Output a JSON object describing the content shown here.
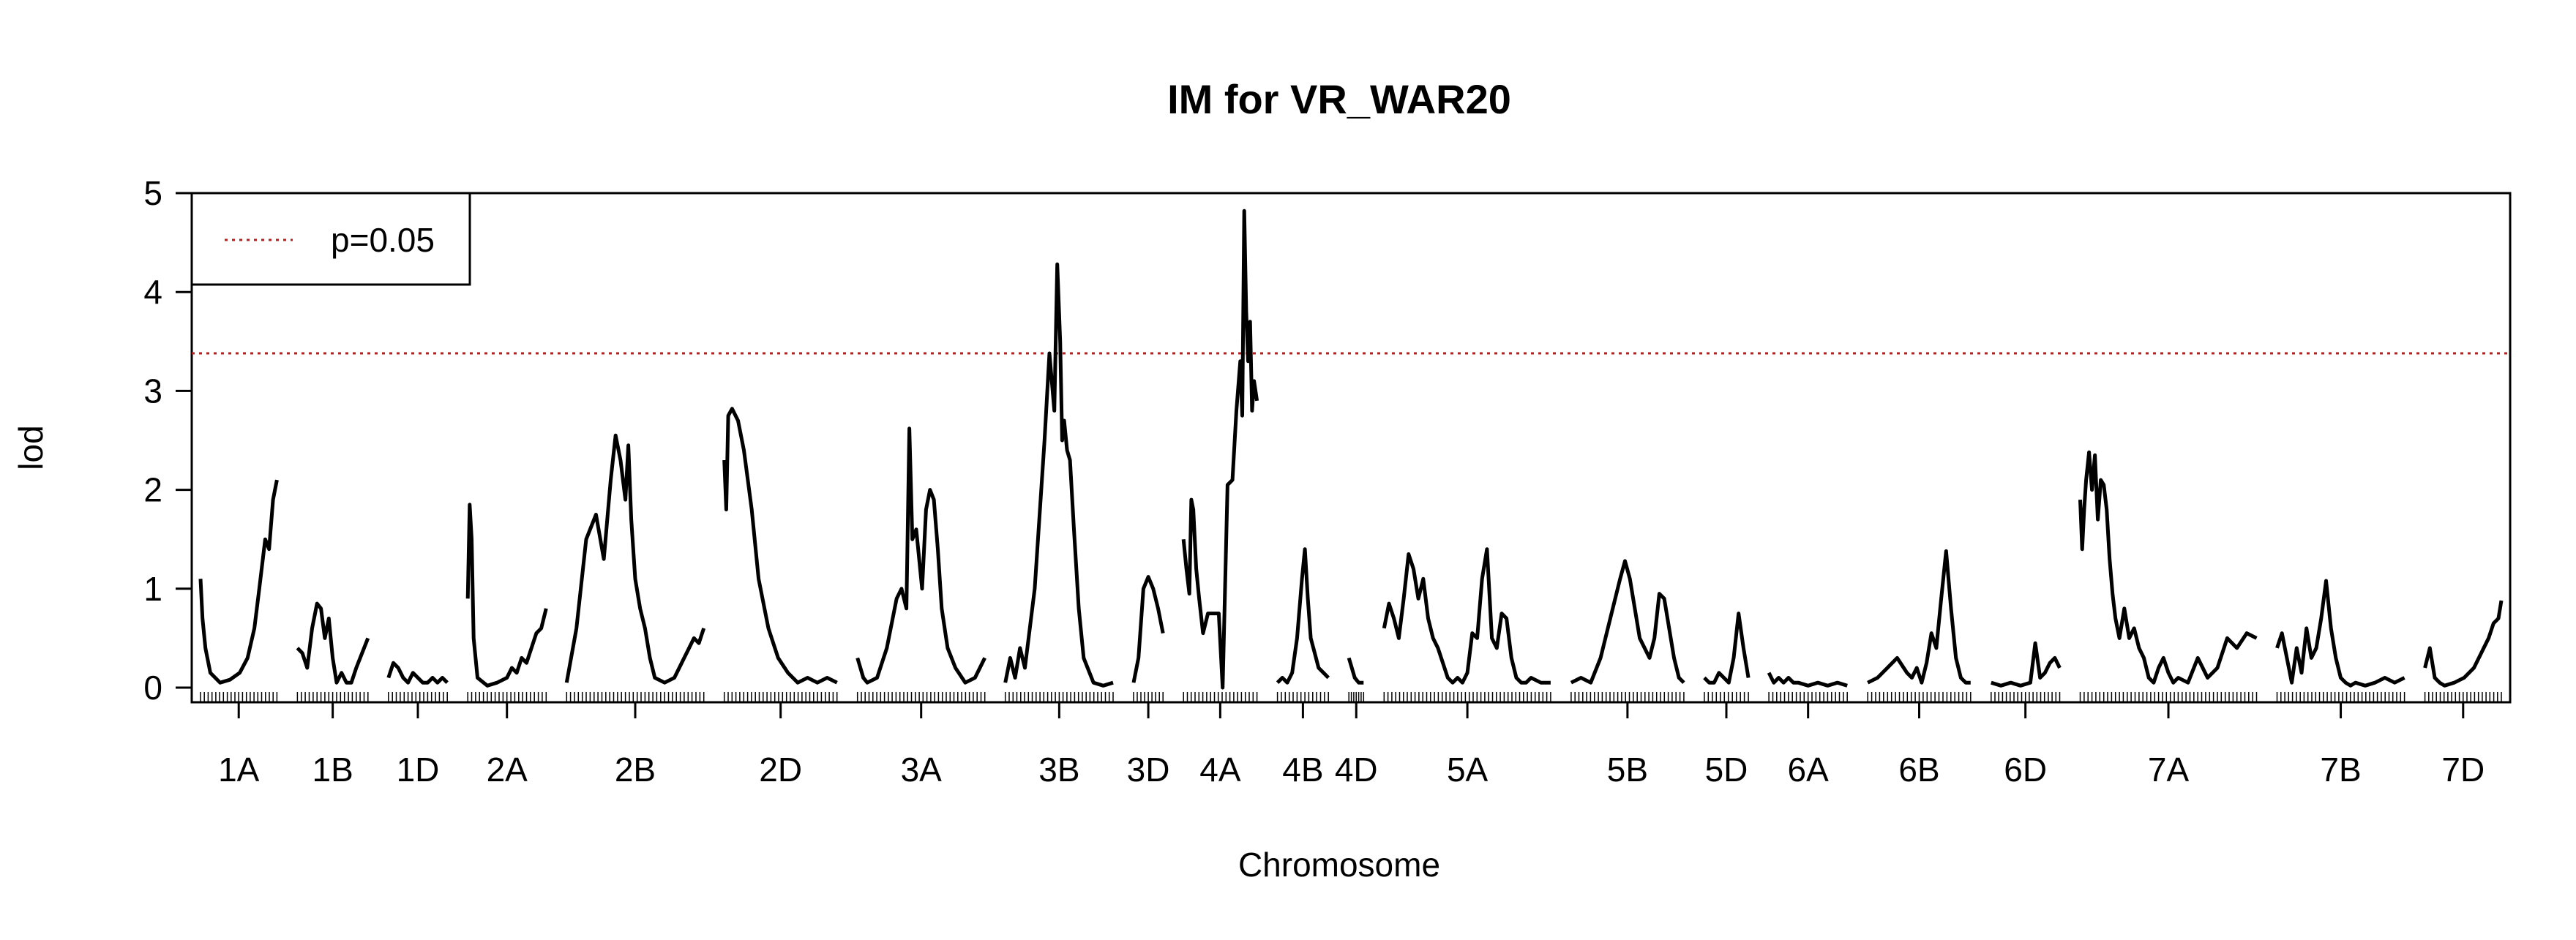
{
  "chart_data": {
    "type": "line",
    "title": "IM for VR_WAR20",
    "xlabel": "Chromosome",
    "ylabel": "lod",
    "ylim": [
      0,
      5
    ],
    "y_ticks": [
      0,
      1,
      2,
      3,
      4,
      5
    ],
    "grid": false,
    "legend": {
      "placement": "top-left",
      "entries": [
        {
          "label": "p=0.05",
          "style": "dotted",
          "color": "#b22222"
        }
      ]
    },
    "threshold": {
      "label": "p=0.05",
      "y": 3.38,
      "color": "#b22222"
    },
    "line_color": "#000000",
    "chromosomes": [
      {
        "name": "1A",
        "x": [
          0,
          2,
          5,
          10,
          20,
          30,
          40,
          48,
          55,
          60,
          66,
          70,
          74,
          78
        ],
        "y": [
          1.1,
          0.7,
          0.4,
          0.15,
          0.05,
          0.08,
          0.15,
          0.3,
          0.6,
          1.0,
          1.5,
          1.4,
          1.9,
          2.1
        ]
      },
      {
        "name": "1B",
        "x": [
          0,
          5,
          10,
          15,
          20,
          24,
          28,
          32,
          36,
          40,
          45,
          50,
          55,
          60,
          66,
          72
        ],
        "y": [
          0.4,
          0.35,
          0.2,
          0.6,
          0.85,
          0.8,
          0.5,
          0.7,
          0.3,
          0.05,
          0.15,
          0.05,
          0.05,
          0.2,
          0.35,
          0.5
        ]
      },
      {
        "name": "1D",
        "x": [
          0,
          5,
          10,
          15,
          20,
          25,
          30,
          35,
          40,
          45,
          50,
          55,
          60
        ],
        "y": [
          0.1,
          0.25,
          0.2,
          0.1,
          0.05,
          0.15,
          0.1,
          0.05,
          0.05,
          0.1,
          0.05,
          0.1,
          0.05
        ]
      },
      {
        "name": "2A",
        "x": [
          0,
          2,
          4,
          6,
          10,
          20,
          30,
          40,
          45,
          50,
          55,
          60,
          65,
          70,
          75,
          80
        ],
        "y": [
          0.9,
          1.85,
          1.5,
          0.5,
          0.1,
          0.02,
          0.05,
          0.1,
          0.2,
          0.15,
          0.3,
          0.25,
          0.4,
          0.55,
          0.6,
          0.8
        ]
      },
      {
        "name": "2B",
        "x": [
          0,
          10,
          20,
          30,
          38,
          45,
          50,
          55,
          60,
          63,
          66,
          70,
          75,
          80,
          85,
          90,
          100,
          110,
          120,
          130,
          135,
          140
        ],
        "y": [
          0.05,
          0.6,
          1.5,
          1.75,
          1.3,
          2.1,
          2.55,
          2.3,
          1.9,
          2.45,
          1.7,
          1.1,
          0.8,
          0.6,
          0.3,
          0.1,
          0.05,
          0.1,
          0.3,
          0.5,
          0.45,
          0.6
        ]
      },
      {
        "name": "2D",
        "x": [
          0,
          2,
          4,
          8,
          14,
          20,
          28,
          35,
          45,
          55,
          65,
          75,
          85,
          95,
          105,
          115
        ],
        "y": [
          2.3,
          1.8,
          2.75,
          2.82,
          2.7,
          2.4,
          1.8,
          1.1,
          0.6,
          0.3,
          0.15,
          0.05,
          0.1,
          0.05,
          0.1,
          0.05
        ]
      },
      {
        "name": "3A",
        "x": [
          0,
          3,
          6,
          10,
          20,
          30,
          40,
          45,
          50,
          53,
          56,
          60,
          63,
          66,
          70,
          74,
          78,
          82,
          86,
          92,
          100,
          110,
          120,
          130
        ],
        "y": [
          0.3,
          0.2,
          0.1,
          0.05,
          0.1,
          0.4,
          0.9,
          1.0,
          0.8,
          2.62,
          1.5,
          1.6,
          1.3,
          1.0,
          1.8,
          2.0,
          1.9,
          1.4,
          0.8,
          0.4,
          0.2,
          0.05,
          0.1,
          0.3
        ]
      },
      {
        "name": "3B",
        "x": [
          0,
          5,
          10,
          15,
          20,
          30,
          40,
          45,
          50,
          53,
          56,
          58,
          60,
          63,
          66,
          70,
          75,
          80,
          90,
          100,
          110
        ],
        "y": [
          0.05,
          0.3,
          0.1,
          0.4,
          0.2,
          1.0,
          2.5,
          3.38,
          2.8,
          4.28,
          3.5,
          2.5,
          2.7,
          2.4,
          2.3,
          1.6,
          0.8,
          0.3,
          0.05,
          0.02,
          0.05
        ]
      },
      {
        "name": "3D",
        "x": [
          0,
          5,
          10,
          15,
          20,
          25,
          30
        ],
        "y": [
          0.05,
          0.3,
          1.0,
          1.12,
          1.0,
          0.8,
          0.55
        ]
      },
      {
        "name": "4A",
        "x": [
          0,
          3,
          6,
          8,
          10,
          13,
          16,
          20,
          25,
          30,
          36,
          40,
          45,
          50,
          54,
          58,
          60,
          62,
          64,
          66,
          68,
          70,
          72,
          75
        ],
        "y": [
          1.5,
          1.2,
          0.95,
          1.9,
          1.8,
          1.2,
          0.9,
          0.55,
          0.75,
          0.75,
          0.75,
          0.0,
          2.05,
          2.1,
          2.8,
          3.3,
          2.75,
          4.82,
          3.8,
          3.3,
          3.7,
          2.8,
          3.1,
          2.9
        ]
      },
      {
        "name": "4B",
        "x": [
          0,
          5,
          10,
          15,
          20,
          25,
          28,
          31,
          34,
          38,
          42,
          47,
          52
        ],
        "y": [
          0.05,
          0.1,
          0.05,
          0.15,
          0.5,
          1.1,
          1.4,
          0.9,
          0.5,
          0.35,
          0.2,
          0.15,
          0.1
        ]
      },
      {
        "name": "4D",
        "x": [
          0,
          3,
          6,
          10,
          15
        ],
        "y": [
          0.3,
          0.2,
          0.1,
          0.05,
          0.05
        ]
      },
      {
        "name": "5A",
        "x": [
          0,
          5,
          10,
          15,
          20,
          25,
          30,
          35,
          40,
          45,
          50,
          55,
          60,
          65,
          70,
          75,
          80,
          85,
          90,
          95,
          100,
          105,
          110,
          115,
          120,
          125,
          130,
          135,
          140,
          145,
          150,
          160,
          170
        ],
        "y": [
          0.6,
          0.85,
          0.7,
          0.5,
          0.9,
          1.35,
          1.2,
          0.9,
          1.1,
          0.7,
          0.5,
          0.4,
          0.25,
          0.1,
          0.05,
          0.1,
          0.05,
          0.15,
          0.55,
          0.5,
          1.1,
          1.4,
          0.5,
          0.4,
          0.75,
          0.7,
          0.3,
          0.1,
          0.05,
          0.05,
          0.1,
          0.05,
          0.05
        ]
      },
      {
        "name": "5B",
        "x": [
          0,
          10,
          20,
          30,
          40,
          50,
          55,
          60,
          65,
          70,
          75,
          80,
          85,
          90,
          95,
          100,
          105,
          110,
          115
        ],
        "y": [
          0.05,
          0.1,
          0.05,
          0.3,
          0.7,
          1.1,
          1.28,
          1.1,
          0.8,
          0.5,
          0.4,
          0.3,
          0.5,
          0.95,
          0.9,
          0.6,
          0.3,
          0.1,
          0.05
        ]
      },
      {
        "name": "5D",
        "x": [
          0,
          5,
          10,
          15,
          20,
          25,
          30,
          35,
          40,
          45
        ],
        "y": [
          0.1,
          0.05,
          0.05,
          0.15,
          0.1,
          0.05,
          0.3,
          0.75,
          0.4,
          0.1
        ]
      },
      {
        "name": "6A",
        "x": [
          0,
          5,
          10,
          15,
          20,
          25,
          30,
          40,
          50,
          60,
          70,
          80
        ],
        "y": [
          0.15,
          0.05,
          0.1,
          0.05,
          0.1,
          0.05,
          0.05,
          0.02,
          0.05,
          0.02,
          0.05,
          0.02
        ]
      },
      {
        "name": "6B",
        "x": [
          0,
          10,
          20,
          30,
          40,
          45,
          50,
          55,
          60,
          65,
          70,
          75,
          80,
          85,
          90,
          95,
          100,
          105
        ],
        "y": [
          0.05,
          0.1,
          0.2,
          0.3,
          0.15,
          0.1,
          0.2,
          0.05,
          0.25,
          0.55,
          0.4,
          0.9,
          1.38,
          0.8,
          0.3,
          0.1,
          0.05,
          0.05
        ]
      },
      {
        "name": "6D",
        "x": [
          0,
          10,
          20,
          30,
          40,
          45,
          50,
          55,
          60,
          65,
          70
        ],
        "y": [
          0.05,
          0.02,
          0.05,
          0.02,
          0.05,
          0.45,
          0.1,
          0.15,
          0.25,
          0.3,
          0.2
        ]
      },
      {
        "name": "7A",
        "x": [
          0,
          2,
          4,
          6,
          9,
          12,
          15,
          18,
          21,
          24,
          27,
          30,
          33,
          36,
          40,
          45,
          50,
          55,
          60,
          65,
          70,
          75,
          80,
          85,
          90,
          95,
          100,
          110,
          120,
          130,
          140,
          150,
          160,
          170,
          180
        ],
        "y": [
          1.9,
          1.4,
          1.8,
          2.1,
          2.38,
          2.0,
          2.35,
          1.7,
          2.1,
          2.05,
          1.8,
          1.3,
          0.95,
          0.7,
          0.5,
          0.8,
          0.5,
          0.6,
          0.4,
          0.3,
          0.1,
          0.05,
          0.2,
          0.3,
          0.15,
          0.05,
          0.1,
          0.05,
          0.3,
          0.1,
          0.2,
          0.5,
          0.4,
          0.55,
          0.5
        ]
      },
      {
        "name": "7B",
        "x": [
          0,
          5,
          10,
          15,
          20,
          25,
          30,
          35,
          40,
          45,
          50,
          55,
          60,
          65,
          70,
          75,
          80,
          90,
          100,
          110,
          120,
          130
        ],
        "y": [
          0.4,
          0.55,
          0.3,
          0.05,
          0.4,
          0.15,
          0.6,
          0.3,
          0.4,
          0.7,
          1.08,
          0.6,
          0.3,
          0.1,
          0.05,
          0.02,
          0.05,
          0.02,
          0.05,
          0.1,
          0.05,
          0.1
        ]
      },
      {
        "name": "7D",
        "x": [
          0,
          5,
          10,
          15,
          20,
          30,
          40,
          50,
          60,
          65,
          70,
          75,
          78
        ],
        "y": [
          0.2,
          0.4,
          0.1,
          0.05,
          0.02,
          0.05,
          0.1,
          0.2,
          0.4,
          0.5,
          0.65,
          0.7,
          0.88
        ]
      }
    ]
  }
}
